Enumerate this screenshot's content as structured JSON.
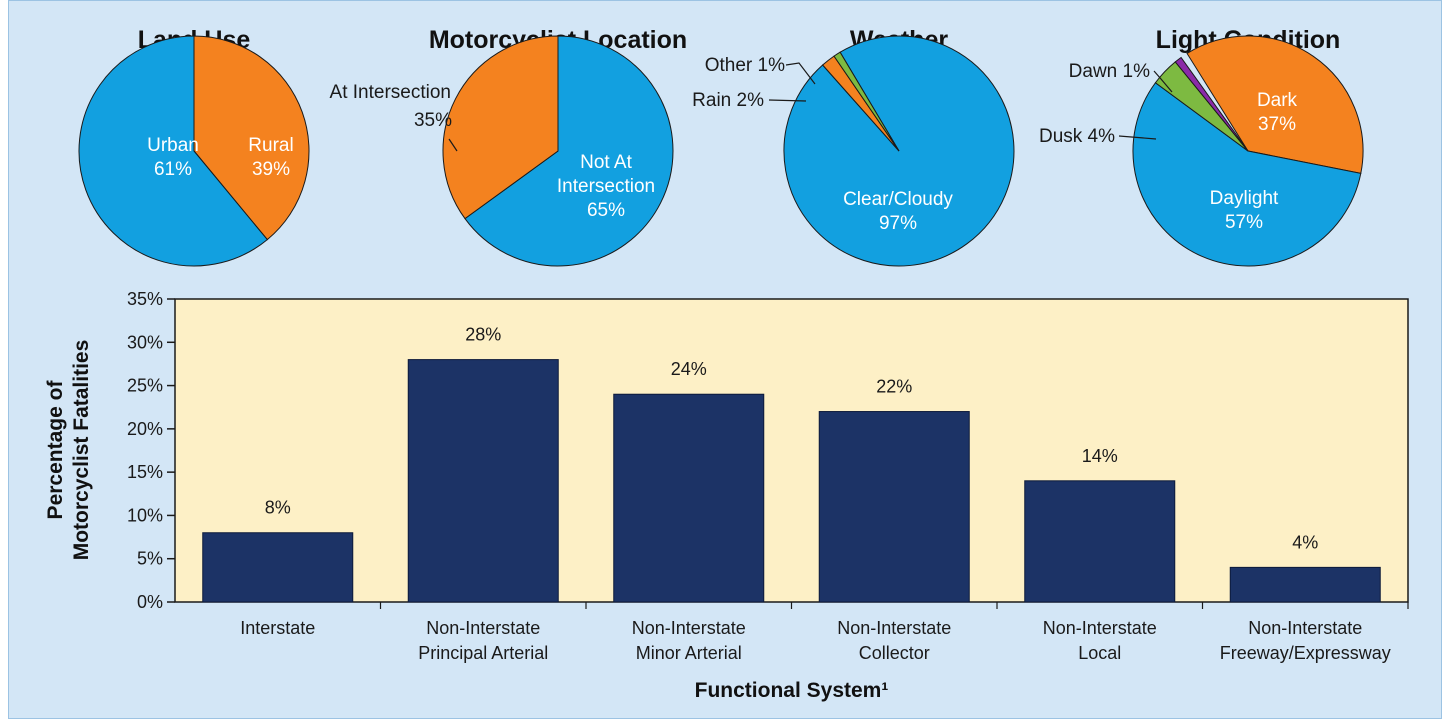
{
  "colors": {
    "background": "#d3e6f6",
    "plot_area": "#fdf0c6",
    "bar": "#1c3366",
    "blue": "#12a0e0",
    "orange": "#f4821f",
    "green": "#7dba41",
    "purple": "#8a2aa8"
  },
  "chart_data": [
    {
      "type": "pie",
      "title": "Land Use",
      "slices": [
        {
          "label": "Urban",
          "value": 61,
          "value_text": "61%",
          "color": "#12a0e0"
        },
        {
          "label": "Rural",
          "value": 39,
          "value_text": "39%",
          "color": "#f4821f"
        }
      ]
    },
    {
      "type": "pie",
      "title": "Motorcyclist Location",
      "slices": [
        {
          "label": "Not At Intersection",
          "label_lines": [
            "Not At",
            "Intersection"
          ],
          "value": 65,
          "value_text": "65%",
          "color": "#12a0e0"
        },
        {
          "label": "At Intersection",
          "value": 35,
          "value_text": "35%",
          "color": "#f4821f"
        }
      ]
    },
    {
      "type": "pie",
      "title": "Weather",
      "slices": [
        {
          "label": "Clear/Cloudy",
          "value": 97,
          "value_text": "97%",
          "color": "#12a0e0"
        },
        {
          "label": "Rain",
          "value": 2,
          "value_text": "2%",
          "color": "#f4821f"
        },
        {
          "label": "Other",
          "value": 1,
          "value_text": "1%",
          "color": "#7dba41"
        }
      ]
    },
    {
      "type": "pie",
      "title": "Light Condition",
      "slices": [
        {
          "label": "Daylight",
          "value": 57,
          "value_text": "57%",
          "color": "#12a0e0"
        },
        {
          "label": "Dusk",
          "value": 4,
          "value_text": "4%",
          "color": "#7dba41"
        },
        {
          "label": "Dawn",
          "value": 1,
          "value_text": "1%",
          "color": "#8a2aa8"
        },
        {
          "label": "Dark",
          "value": 37,
          "value_text": "37%",
          "color": "#f4821f"
        }
      ]
    },
    {
      "type": "bar",
      "xlabel": "Functional System¹",
      "ylabel_lines": [
        "Percentage of",
        "Motorcyclist Fatalities"
      ],
      "ylim": [
        0,
        35
      ],
      "yticks": [
        0,
        5,
        10,
        15,
        20,
        25,
        30,
        35
      ],
      "ytick_labels": [
        "0%",
        "5%",
        "10%",
        "15%",
        "20%",
        "25%",
        "30%",
        "35%"
      ],
      "categories": [
        [
          "Interstate"
        ],
        [
          "Non-Interstate",
          "Principal Arterial"
        ],
        [
          "Non-Interstate",
          "Minor Arterial"
        ],
        [
          "Non-Interstate",
          "Collector"
        ],
        [
          "Non-Interstate",
          "Local"
        ],
        [
          "Non-Interstate",
          "Freeway/Expressway"
        ]
      ],
      "values": [
        8,
        28,
        24,
        22,
        14,
        4
      ],
      "value_labels": [
        "8%",
        "28%",
        "24%",
        "22%",
        "14%",
        "4%"
      ],
      "grid": false
    }
  ]
}
